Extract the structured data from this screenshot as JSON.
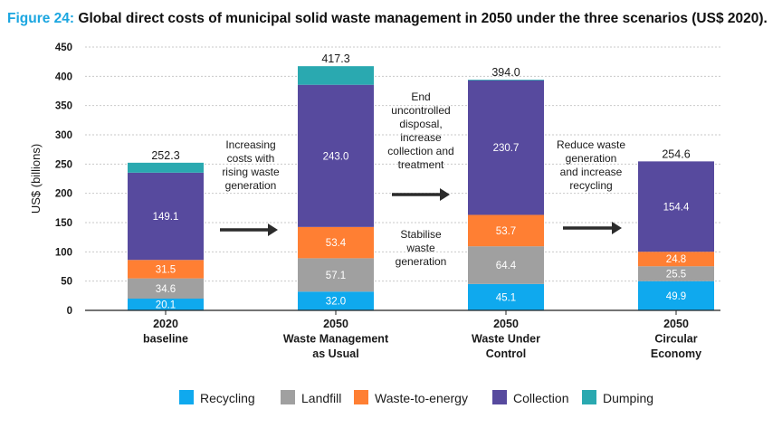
{
  "title_prefix": "Figure 24:",
  "title_text": " Global direct costs of municipal solid waste management in 2050 under the three scenarios (US$ 2020).",
  "colors": {
    "title_prefix": "#1ba6e0",
    "Recycling": "#0fa9ee",
    "Landfill": "#a0a0a0",
    "Waste-to-energy": "#ff7f33",
    "Collection": "#574a9e",
    "Dumping": "#2aa9b0",
    "arrow": "#2b2b2b"
  },
  "chart_data": {
    "type": "bar",
    "stacked": true,
    "title": "Global direct costs of municipal solid waste management in 2050 under the three scenarios (US$ 2020).",
    "ylabel": "US$ (billions)",
    "ylim": [
      0,
      450
    ],
    "yticks": [
      0,
      50,
      100,
      150,
      200,
      250,
      300,
      350,
      400,
      450
    ],
    "grid": true,
    "categories": [
      [
        "2020",
        "baseline"
      ],
      [
        "2050",
        "Waste Management",
        "as Usual"
      ],
      [
        "2050",
        "Waste Under",
        "Control"
      ],
      [
        "2050",
        "Circular",
        "Economy"
      ]
    ],
    "series": [
      {
        "name": "Recycling",
        "values": [
          20.1,
          32.0,
          45.1,
          49.9
        ],
        "labels": [
          "20.1",
          "32.0",
          "45.1",
          "49.9"
        ]
      },
      {
        "name": "Landfill",
        "values": [
          34.6,
          57.1,
          64.4,
          25.5
        ],
        "labels": [
          "34.6",
          "57.1",
          "64.4",
          "25.5"
        ]
      },
      {
        "name": "Waste-to-energy",
        "values": [
          31.5,
          53.4,
          53.7,
          24.8
        ],
        "labels": [
          "31.5",
          "53.4",
          "53.7",
          "24.8"
        ]
      },
      {
        "name": "Collection",
        "values": [
          149.1,
          243.0,
          230.7,
          154.4
        ],
        "labels": [
          "149.1",
          "243.0",
          "230.7",
          "154.4"
        ]
      },
      {
        "name": "Dumping",
        "values": [
          17.0,
          31.8,
          0.1,
          0.0
        ],
        "labels": [
          "",
          "",
          "",
          ""
        ]
      }
    ],
    "totals": [
      "252.3",
      "417.3",
      "394.0",
      "254.6"
    ],
    "legend_order": [
      "Recycling",
      "Landfill",
      "Waste-to-energy",
      "Collection",
      "Dumping"
    ],
    "legend_position": "bottom",
    "annotations": [
      [
        "Increasing",
        "costs with",
        "rising waste",
        "generation"
      ],
      [
        "End",
        "uncontrolled",
        "disposal,",
        "increase",
        "collection and",
        "treatment"
      ],
      [
        "Stabilise",
        "waste",
        "generation"
      ],
      [
        "Reduce waste",
        "generation",
        "and increase",
        "recycling"
      ]
    ]
  }
}
